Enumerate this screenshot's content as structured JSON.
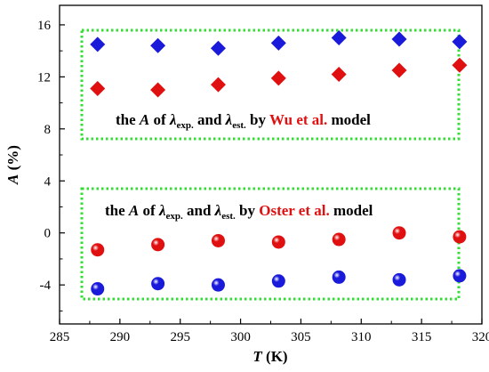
{
  "chart_data": {
    "type": "scatter",
    "xlabel": {
      "symbol": "T",
      "unit": " (K)"
    },
    "ylabel": {
      "symbol": "A",
      "unit": " (%)"
    },
    "xlim": [
      285,
      320
    ],
    "ylim": [
      -7,
      17.5
    ],
    "xticks": [
      285,
      290,
      295,
      300,
      305,
      310,
      315,
      320
    ],
    "yticks": [
      -4,
      0,
      4,
      8,
      12,
      16
    ],
    "x": [
      288.15,
      293.15,
      298.15,
      303.15,
      308.15,
      313.15,
      318.15
    ],
    "series": [
      {
        "marker": "diamond",
        "color": "#1a1adb",
        "values": [
          14.5,
          14.4,
          14.2,
          14.6,
          15.0,
          14.9,
          14.7
        ]
      },
      {
        "marker": "diamond",
        "color": "#e01010",
        "values": [
          11.1,
          11.0,
          11.4,
          11.9,
          12.2,
          12.5,
          12.9
        ]
      },
      {
        "marker": "circle",
        "color": "#e01010",
        "values": [
          -1.3,
          -0.9,
          -0.6,
          -0.7,
          -0.5,
          0.0,
          -0.3
        ]
      },
      {
        "marker": "circle",
        "color": "#1a1adb",
        "values": [
          -4.3,
          -3.9,
          -4.0,
          -3.7,
          -3.4,
          -3.6,
          -3.3
        ]
      }
    ],
    "annotations": [
      {
        "parts": [
          "the ",
          "A",
          " of ",
          "λ",
          "exp.",
          " and ",
          "λ",
          "est.",
          " by ",
          "Wu et al.",
          " model"
        ],
        "highlight_color": "#e01010"
      },
      {
        "parts": [
          "the ",
          "A",
          " of ",
          "λ",
          "exp.",
          " and ",
          "λ",
          "est.",
          " by ",
          "Oster et al.",
          " model"
        ],
        "highlight_color": "#e01010"
      }
    ],
    "box_color": "#33dd33",
    "grid": false,
    "legend": "none"
  }
}
